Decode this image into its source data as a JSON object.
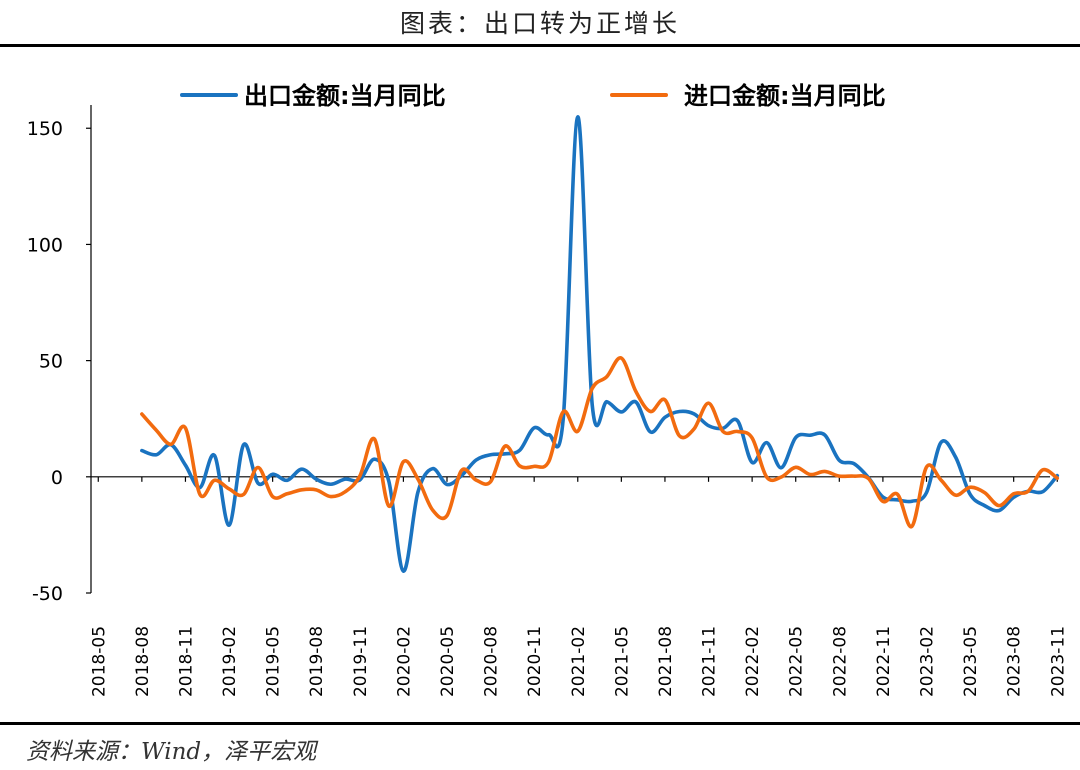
{
  "page": {
    "title": "图表：出口转为正增长",
    "source": "资料来源：Wind，泽平宏观"
  },
  "colors": {
    "export": "#1a73c0",
    "import": "#f26b0f",
    "axis": "#000000"
  },
  "chart_data": {
    "type": "line",
    "title": "图表：出口转为正增长",
    "xlabel": "",
    "ylabel": "",
    "ylim": [
      -50,
      160
    ],
    "yticks": [
      -50,
      0,
      50,
      100,
      150
    ],
    "grid": false,
    "legend_placement": "top",
    "x_tick_labels": [
      "2018-05",
      "2018-08",
      "2018-11",
      "2019-02",
      "2019-05",
      "2019-08",
      "2019-11",
      "2020-02",
      "2020-05",
      "2020-08",
      "2020-11",
      "2021-02",
      "2021-05",
      "2021-08",
      "2021-11",
      "2022-02",
      "2022-05",
      "2022-08",
      "2022-11",
      "2023-02",
      "2023-05",
      "2023-08",
      "2023-11"
    ],
    "x_start": "2018-05",
    "x": [
      "2018-08",
      "2018-09",
      "2018-10",
      "2018-11",
      "2018-12",
      "2019-01",
      "2019-02",
      "2019-03",
      "2019-04",
      "2019-05",
      "2019-06",
      "2019-07",
      "2019-08",
      "2019-09",
      "2019-10",
      "2019-11",
      "2019-12",
      "2020-01",
      "2020-02",
      "2020-03",
      "2020-04",
      "2020-05",
      "2020-06",
      "2020-07",
      "2020-08",
      "2020-09",
      "2020-10",
      "2020-11",
      "2020-12",
      "2021-01",
      "2021-02",
      "2021-03",
      "2021-04",
      "2021-05",
      "2021-06",
      "2021-07",
      "2021-08",
      "2021-09",
      "2021-10",
      "2021-11",
      "2021-12",
      "2022-01",
      "2022-02",
      "2022-03",
      "2022-04",
      "2022-05",
      "2022-06",
      "2022-07",
      "2022-08",
      "2022-09",
      "2022-10",
      "2022-11",
      "2022-12",
      "2023-01",
      "2023-02",
      "2023-03",
      "2023-04",
      "2023-05",
      "2023-06",
      "2023-07",
      "2023-08",
      "2023-09",
      "2023-10",
      "2023-11"
    ],
    "series": [
      {
        "name": "出口金额:当月同比",
        "color": "#1a73c0",
        "values": [
          11.3,
          9.5,
          13.8,
          5.0,
          -4.6,
          9.2,
          -20.8,
          13.8,
          -2.8,
          1.1,
          -1.5,
          3.3,
          -1.0,
          -3.2,
          -1.0,
          -1.3,
          7.6,
          -2.0,
          -40.6,
          -6.6,
          3.5,
          -3.3,
          0.5,
          7.2,
          9.5,
          9.9,
          11.4,
          21.1,
          18.1,
          25.0,
          154.9,
          30.6,
          32.3,
          27.9,
          32.2,
          19.3,
          25.6,
          28.1,
          27.1,
          22.0,
          20.9,
          24.1,
          6.2,
          14.7,
          3.9,
          16.9,
          17.9,
          18.0,
          7.1,
          5.7,
          -0.3,
          -8.7,
          -9.9,
          -10.5,
          -6.8,
          14.8,
          8.5,
          -7.5,
          -12.4,
          -14.5,
          -8.8,
          -6.2,
          -6.4,
          0.5
        ]
      },
      {
        "name": "进口金额:当月同比",
        "color": "#f26b0f",
        "values": [
          27.0,
          20.0,
          14.0,
          21.0,
          -7.6,
          -1.5,
          -5.2,
          -7.6,
          4.0,
          -8.5,
          -7.3,
          -5.6,
          -5.6,
          -8.5,
          -6.4,
          0.3,
          16.3,
          -12.6,
          6.5,
          -1.0,
          -14.2,
          -16.7,
          2.7,
          -1.4,
          -2.1,
          13.2,
          4.7,
          4.5,
          6.5,
          28.0,
          19.6,
          38.1,
          43.1,
          51.1,
          36.7,
          28.1,
          33.1,
          17.6,
          20.6,
          31.7,
          19.5,
          19.5,
          16.7,
          -0.1,
          -0.1,
          4.1,
          1.0,
          2.3,
          0.3,
          0.3,
          -0.7,
          -10.6,
          -7.5,
          -21.3,
          4.2,
          -1.4,
          -7.9,
          -4.5,
          -6.8,
          -12.4,
          -7.3,
          -6.2,
          3.0,
          -0.6
        ]
      }
    ]
  }
}
